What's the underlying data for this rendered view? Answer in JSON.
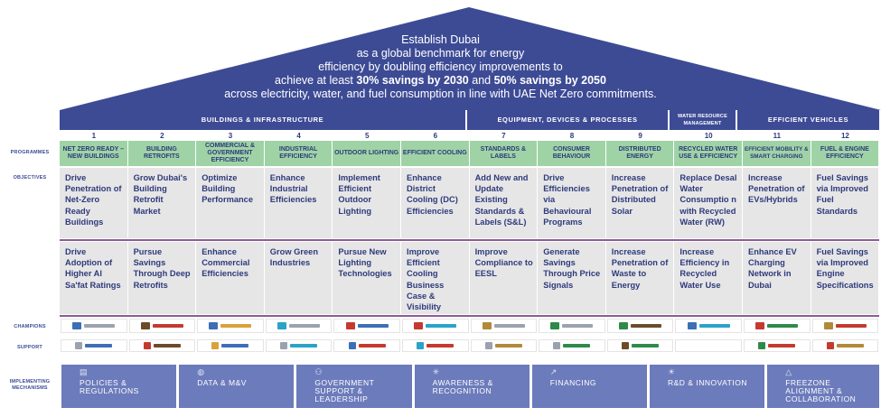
{
  "vision": {
    "line1": "Establish Dubai",
    "line2": "as a global benchmark for energy",
    "line3": "efficiency by doubling efficiency improvements to",
    "line4_pre": "achieve at least ",
    "line4_b1": "30% savings by 2030",
    "line4_mid": " and ",
    "line4_b2": "50% savings by 2050",
    "line5": "across electricity, water, and fuel consumption in line with UAE Net Zero commitments."
  },
  "categories": [
    "BUILDINGS & INFRASTRUCTURE",
    "EQUIPMENT, DEVICES & PROCESSES",
    "WATER RESOURCE MANAGEMENT",
    "EFFICIENT VEHICLES"
  ],
  "row_labels": {
    "programmes": "PROGRAMMES",
    "objectives": "OBJECTIVES",
    "champions": "CHAMPIONS",
    "support": "SUPPORT",
    "implementing": "IMPLEMENTING MECHANISMS"
  },
  "programmes": [
    {
      "num": "1",
      "name": "NET ZERO READY – NEW BUILDINGS",
      "obj1": "Drive Penetration of Net-Zero Ready Buildings",
      "obj2": "Drive Adoption of Higher Al Sa'fat Ratings"
    },
    {
      "num": "2",
      "name": "BUILDING RETROFITS",
      "obj1": "Grow Dubai's Building Retrofit Market",
      "obj2": "Pursue Savings Through Deep Retrofits"
    },
    {
      "num": "3",
      "name": "COMMERCIAL & GOVERNMENT EFFICIENCY",
      "obj1": "Optimize Building Performance",
      "obj2": "Enhance Commercial Efficiencies"
    },
    {
      "num": "4",
      "name": "INDUSTRIAL EFFICIENCY",
      "obj1": "Enhance Industrial Efficiencies",
      "obj2": "Grow Green Industries"
    },
    {
      "num": "5",
      "name": "OUTDOOR LIGHTING",
      "obj1": "Implement Efficient Outdoor Lighting",
      "obj2": "Pursue New Lighting Technologies"
    },
    {
      "num": "6",
      "name": "EFFICIENT COOLING",
      "obj1": "Enhance District Cooling (DC) Efficiencies",
      "obj2": "Improve Efficient Cooling Business Case & Visibility"
    },
    {
      "num": "7",
      "name": "STANDARDS & LABELS",
      "obj1": "Add New and Update Existing Standards & Labels (S&L)",
      "obj2": "Improve Compliance to EESL"
    },
    {
      "num": "8",
      "name": "CONSUMER BEHAVIOUR",
      "obj1": "Drive Efficiencies via Behavioural Programs",
      "obj2": "Generate Savings Through Price Signals"
    },
    {
      "num": "9",
      "name": "DISTRIBUTED ENERGY",
      "obj1": "Increase Penetration of Distributed Solar",
      "obj2": "Increase Penetration of Waste to Energy"
    },
    {
      "num": "10",
      "name": "RECYCLED WATER USE & EFFICIENCY",
      "obj1": "Replace Desal Water Consumptio n with Recycled Water (RW)",
      "obj2": "Increase Efficiency in Recycled Water Use"
    },
    {
      "num": "11",
      "name": "EFFICIENT MOBILITY & SMART CHARGING",
      "obj1": "Increase Penetration of EVs/Hybrids",
      "obj2": "Enhance EV Charging Network in Dubai"
    },
    {
      "num": "12",
      "name": "FUEL & ENGINE EFFICIENCY",
      "obj1": "Fuel Savings via Improved Fuel Standards",
      "obj2": "Fuel Savings via Improved Engine Specifications"
    }
  ],
  "mechanisms": [
    {
      "label": "POLICIES & REGULATIONS",
      "icon": "document-icon"
    },
    {
      "label": "DATA & M&V",
      "icon": "globe-icon"
    },
    {
      "label": "GOVERNMENT SUPPORT & LEADERSHIP",
      "icon": "handshake-icon"
    },
    {
      "label": "AWARENESS & RECOGNITION",
      "icon": "sparkle-icon"
    },
    {
      "label": "FINANCING",
      "icon": "trend-up-icon"
    },
    {
      "label": "R&D & INNOVATION",
      "icon": "lightbulb-icon"
    },
    {
      "label": "FREEZONE ALIGNMENT & COLLABORATION",
      "icon": "network-icon"
    }
  ],
  "colors": {
    "roof": "#3d4b95",
    "category": "#3d4b95",
    "programme": "#9fd3a6",
    "objective": "#e6e6e7",
    "divider": "#8e5b97",
    "mechanism": "#6c7bbb",
    "text": "#2e3a7a"
  }
}
